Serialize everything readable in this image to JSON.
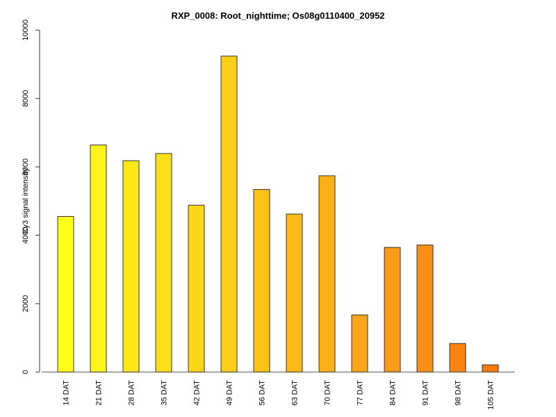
{
  "chart_data": {
    "type": "bar",
    "title": "RXP_0008: Root_nighttime; Os08g0110400_20952",
    "xlabel": "",
    "ylabel": "Cy3  signal intensity",
    "ylim": [
      0,
      10000
    ],
    "yticks": [
      0,
      2000,
      4000,
      6000,
      8000,
      10000
    ],
    "grid": false,
    "categories": [
      "14 DAT",
      "21 DAT",
      "28 DAT",
      "35 DAT",
      "42 DAT",
      "49 DAT",
      "56 DAT",
      "63 DAT",
      "70 DAT",
      "77 DAT",
      "84 DAT",
      "91 DAT",
      "98 DAT",
      "105 DAT"
    ],
    "values": [
      4550,
      6640,
      6180,
      6390,
      4880,
      9240,
      5340,
      4620,
      5740,
      1670,
      3645,
      3715,
      835,
      210
    ],
    "colors": [
      "#FFFF19",
      "#FFF319",
      "#FDE819",
      "#FCDF18",
      "#FBD717",
      "#FCCE16",
      "#FCC316",
      "#FCB917",
      "#FBB017",
      "#FAA618",
      "#F99B17",
      "#F98F13",
      "#F9850F",
      "#F77A0C"
    ]
  }
}
